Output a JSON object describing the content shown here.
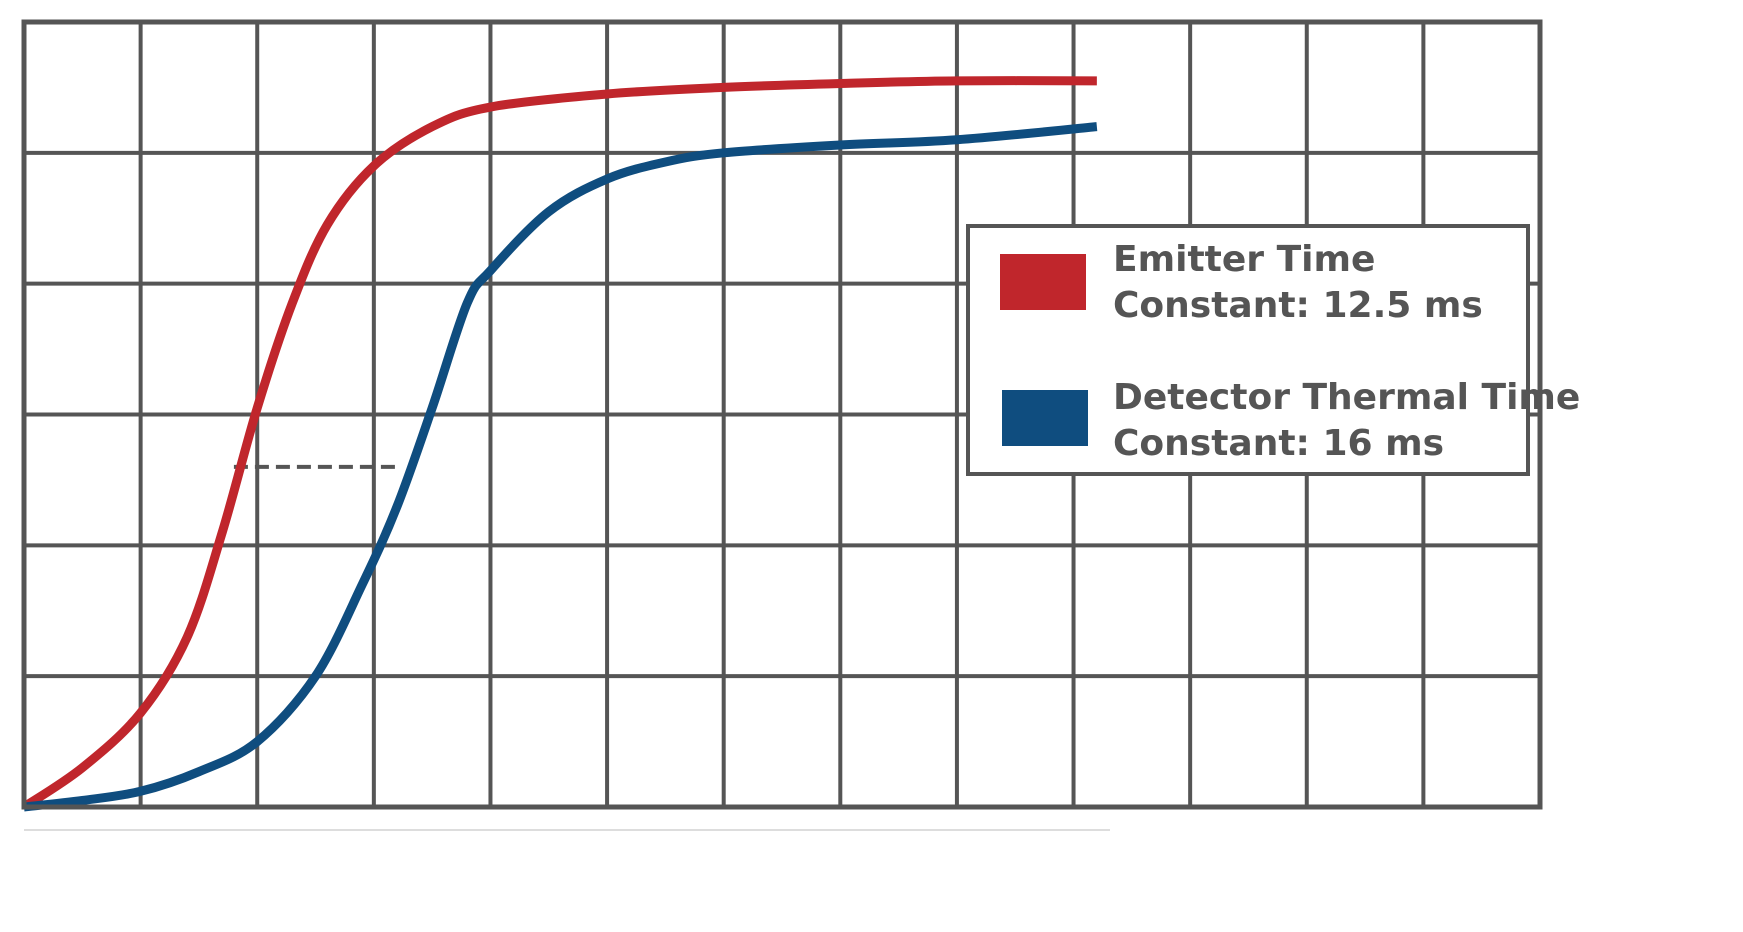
{
  "chart_data": {
    "type": "line",
    "title": "",
    "xlabel": "",
    "ylabel": "",
    "xlim": [
      0,
      13
    ],
    "ylim": [
      0,
      6
    ],
    "grid": true,
    "legend_position": "right",
    "series": [
      {
        "name": "Emitter Time Constant: 12.5 ms",
        "legend_lines": [
          "Emitter Time",
          "Constant: 12.5 ms"
        ],
        "color": "#c0262c",
        "x": [
          0,
          0.5,
          1.0,
          1.4,
          1.7,
          2.0,
          2.3,
          2.6,
          3.0,
          3.5,
          4.0,
          5.0,
          6.0,
          7.0,
          8.0,
          9.2
        ],
        "y": [
          0,
          0.3,
          0.72,
          1.3,
          2.1,
          3.05,
          3.85,
          4.45,
          4.9,
          5.2,
          5.35,
          5.45,
          5.5,
          5.53,
          5.55,
          5.55
        ]
      },
      {
        "name": "Detector Thermal Time Constant: 16 ms",
        "legend_lines": [
          "Detector Thermal Time",
          "Constant: 16 ms"
        ],
        "color": "#0f4d7f",
        "x": [
          0,
          0.5,
          1.0,
          1.5,
          2.0,
          2.5,
          2.9,
          3.2,
          3.5,
          3.8,
          4.0,
          4.5,
          5.0,
          5.5,
          6.0,
          7.0,
          8.0,
          9.2
        ],
        "y": [
          0,
          0.05,
          0.12,
          0.27,
          0.5,
          1.0,
          1.7,
          2.3,
          3.05,
          3.85,
          4.1,
          4.55,
          4.8,
          4.93,
          5.0,
          5.06,
          5.1,
          5.2
        ]
      }
    ],
    "annotations": [
      {
        "type": "dashed-line",
        "x": [
          1.8,
          3.2
        ],
        "y": 2.6
      }
    ]
  }
}
